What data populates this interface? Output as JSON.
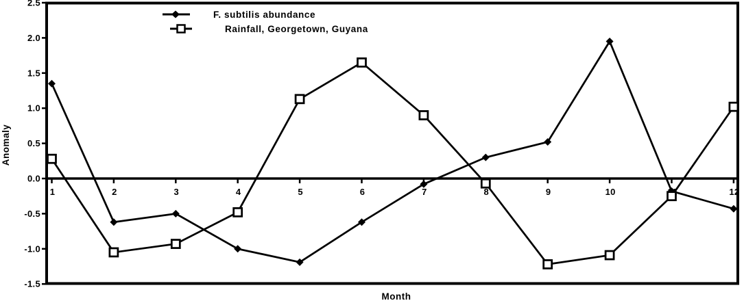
{
  "chart_data": {
    "type": "line",
    "title": "",
    "xlabel": "Month",
    "ylabel": "Anomaly",
    "x": [
      1,
      2,
      3,
      4,
      5,
      6,
      7,
      8,
      9,
      10,
      11,
      12
    ],
    "x_tick_labels": [
      "1",
      "2",
      "3",
      "4",
      "5",
      "6",
      "7",
      "8",
      "9",
      "10",
      "11",
      "12"
    ],
    "xlim": [
      0.9,
      12.1
    ],
    "ylim": [
      -1.5,
      2.5
    ],
    "y_ticks": [
      {
        "label": "2.5",
        "value": 2.5
      },
      {
        "label": "2.0",
        "value": 2.0
      },
      {
        "label": "1.5",
        "value": 1.5
      },
      {
        "label": "1.0",
        "value": 1.0
      },
      {
        "label": "0.5",
        "value": 0.5
      },
      {
        "label": "0.0",
        "value": 0.0
      },
      {
        "label": "-0.5",
        "value": -0.5
      },
      {
        "label": "-1.0",
        "value": -1.0
      },
      {
        "label": "-1.5",
        "value": -1.5
      }
    ],
    "grid": false,
    "zero_line": true,
    "legend_position": "top-left-inside",
    "series": [
      {
        "name": "F. subtilis abundance",
        "marker": "filled-diamond",
        "values": [
          1.35,
          -0.62,
          -0.5,
          -1.0,
          -1.19,
          -0.62,
          -0.08,
          0.3,
          0.52,
          1.95,
          -0.18,
          -0.43
        ]
      },
      {
        "name": "Rainfall, Georgetown, Guyana",
        "marker": "open-square",
        "values": [
          0.28,
          -1.05,
          -0.93,
          -0.48,
          1.13,
          1.65,
          0.9,
          -0.07,
          -1.22,
          -1.09,
          -0.25,
          1.02
        ]
      }
    ],
    "colors": {
      "line": "#000000",
      "marker_fill": "#000000",
      "open_marker_fill": "#ffffff",
      "background": "#ffffff",
      "frame": "#000000"
    }
  }
}
